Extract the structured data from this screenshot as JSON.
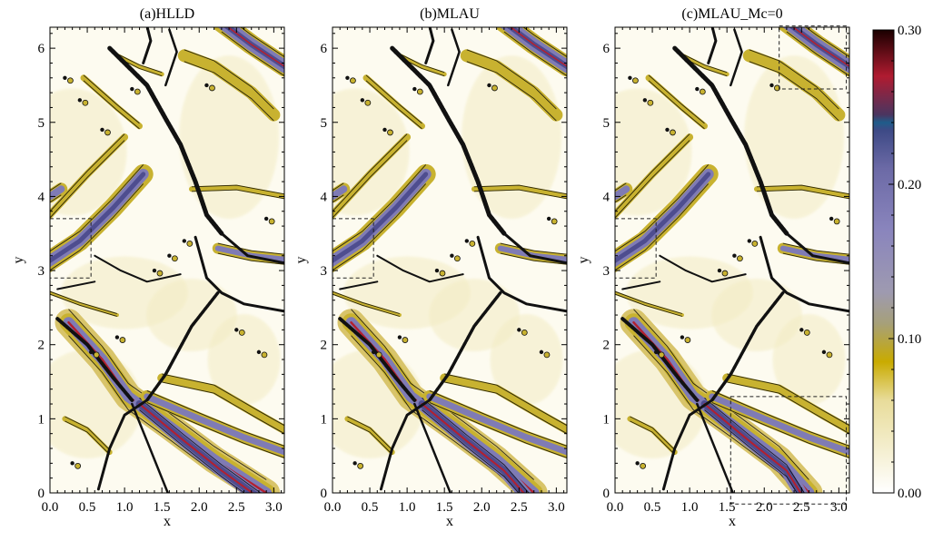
{
  "chart_data": [
    {
      "type": "heatmap",
      "title": "(a)HLLD",
      "xlabel": "x",
      "ylabel": "y",
      "xlim": [
        0,
        3.1416
      ],
      "ylim": [
        0,
        6.2832
      ],
      "x_ticks": [
        "0.0",
        "0.5",
        "1.0",
        "1.5",
        "2.0",
        "2.5",
        "3.0"
      ],
      "y_ticks": [
        "0",
        "1",
        "2",
        "3",
        "4",
        "5",
        "6"
      ],
      "highlight_boxes": [
        {
          "x": [
            0.0,
            0.55
          ],
          "y": [
            2.9,
            3.7
          ]
        }
      ],
      "features": [
        {
          "name": "current-sheet-lower-right",
          "x": [
            0.3,
            2.9
          ],
          "y": [
            2.3,
            0.0
          ],
          "peak": 0.3
        },
        {
          "name": "current-sheet-upper-right",
          "x": [
            2.35,
            3.1
          ],
          "y": [
            6.28,
            5.75
          ],
          "peak": 0.25
        },
        {
          "name": "current-sheet-left-mid",
          "x": [
            0.0,
            1.2
          ],
          "y": [
            3.1,
            4.2
          ],
          "peak": 0.2
        },
        {
          "name": "band-mid-right",
          "x": [
            2.2,
            3.1
          ],
          "y": [
            3.2,
            3.2
          ],
          "peak": 0.2
        }
      ]
    },
    {
      "type": "heatmap",
      "title": "(b)MLAU",
      "xlabel": "x",
      "ylabel": "y",
      "xlim": [
        0,
        3.1416
      ],
      "ylim": [
        0,
        6.2832
      ],
      "x_ticks": [
        "0.0",
        "0.5",
        "1.0",
        "1.5",
        "2.0",
        "2.5",
        "3.0"
      ],
      "y_ticks": [
        "0",
        "1",
        "2",
        "3",
        "4",
        "5",
        "6"
      ],
      "highlight_boxes": [
        {
          "x": [
            0.0,
            0.55
          ],
          "y": [
            2.9,
            3.7
          ]
        }
      ],
      "features": [
        {
          "name": "current-sheet-lower-right",
          "x": [
            0.3,
            2.7
          ],
          "y": [
            2.3,
            0.0
          ],
          "peak": 0.3
        },
        {
          "name": "current-sheet-upper-right",
          "x": [
            2.35,
            3.1
          ],
          "y": [
            6.28,
            5.75
          ],
          "peak": 0.25
        },
        {
          "name": "current-sheet-left-mid",
          "x": [
            0.0,
            1.2
          ],
          "y": [
            3.1,
            4.2
          ],
          "peak": 0.2
        },
        {
          "name": "band-mid-right",
          "x": [
            2.2,
            3.1
          ],
          "y": [
            3.2,
            3.2
          ],
          "peak": 0.2
        }
      ]
    },
    {
      "type": "heatmap",
      "title": "(c)MLAU_Mc=0",
      "xlabel": "x",
      "ylabel": "y",
      "xlim": [
        0,
        3.1416
      ],
      "ylim": [
        0,
        6.2832
      ],
      "x_ticks": [
        "0.0",
        "0.5",
        "1.0",
        "1.5",
        "2.0",
        "2.5",
        "3.0"
      ],
      "y_ticks": [
        "0",
        "1",
        "2",
        "3",
        "4",
        "5",
        "6"
      ],
      "highlight_boxes": [
        {
          "x": [
            0.0,
            0.55
          ],
          "y": [
            2.9,
            3.7
          ]
        },
        {
          "x": [
            2.2,
            3.1
          ],
          "y": [
            5.45,
            6.3
          ]
        },
        {
          "x": [
            1.55,
            3.1
          ],
          "y": [
            -0.15,
            1.3
          ]
        }
      ],
      "features": [
        {
          "name": "current-sheet-lower-right",
          "x": [
            0.3,
            2.6
          ],
          "y": [
            2.3,
            0.0
          ],
          "peak": 0.3
        },
        {
          "name": "current-sheet-upper-right",
          "x": [
            2.35,
            3.1
          ],
          "y": [
            6.28,
            5.75
          ],
          "peak": 0.25
        },
        {
          "name": "current-sheet-left-mid",
          "x": [
            0.0,
            1.2
          ],
          "y": [
            3.1,
            4.2
          ],
          "peak": 0.2
        },
        {
          "name": "band-mid-right",
          "x": [
            2.2,
            3.1
          ],
          "y": [
            3.2,
            3.2
          ],
          "peak": 0.2
        }
      ]
    }
  ],
  "colorbar": {
    "tick_labels": [
      "0.30",
      "0.20",
      "0.10",
      "0.00"
    ],
    "ticks": [
      0.3,
      0.2,
      0.1,
      0.0
    ],
    "range": [
      0,
      0.3
    ],
    "colors": [
      {
        "v": 0.0,
        "c": "#ffffff"
      },
      {
        "v": 0.06,
        "c": "#e8dc9a"
      },
      {
        "v": 0.085,
        "c": "#c9ab00"
      },
      {
        "v": 0.11,
        "c": "#a6a07a"
      },
      {
        "v": 0.13,
        "c": "#9e9ab0"
      },
      {
        "v": 0.17,
        "c": "#8a85bd"
      },
      {
        "v": 0.21,
        "c": "#6c6aa6"
      },
      {
        "v": 0.235,
        "c": "#3e4a86"
      },
      {
        "v": 0.24,
        "c": "#1f5c8a"
      },
      {
        "v": 0.245,
        "c": "#4a3560"
      },
      {
        "v": 0.27,
        "c": "#b01b30"
      },
      {
        "v": 0.3,
        "c": "#1a0000"
      }
    ]
  }
}
